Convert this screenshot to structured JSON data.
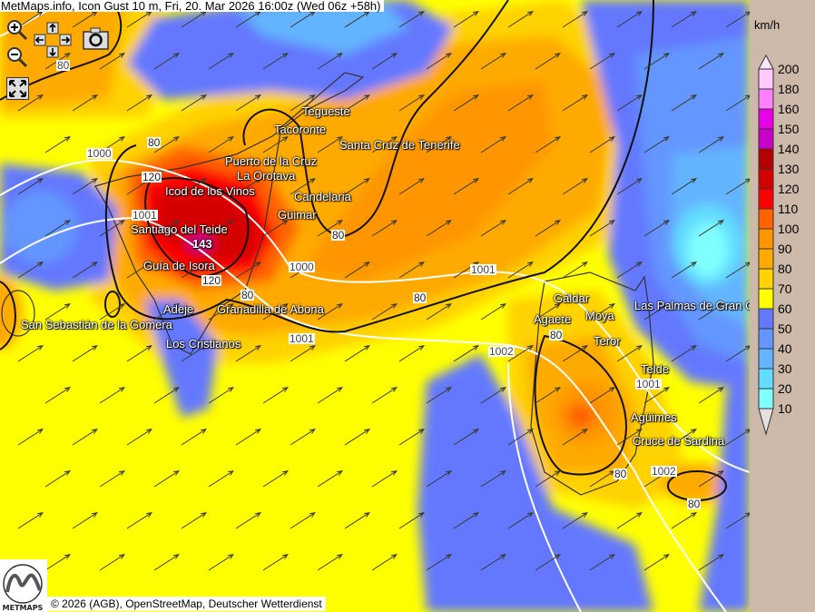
{
  "title": "MetMaps.info, Icon Gust 10 m, Fri, 20. Mar 2026 16:00z (Wed 06z +58h)",
  "controls": {
    "zoom_in": "zoom-in-icon",
    "zoom_out": "zoom-out-icon",
    "pan": "pan-arrows-icon",
    "screenshot": "camera-icon",
    "fullscreen": "fullscreen-icon"
  },
  "cities": [
    {
      "name": "Tegueste"
    },
    {
      "name": "Tacoronte"
    },
    {
      "name": "Santa Cruz de Tenerife"
    },
    {
      "name": "Puerto de la Cruz"
    },
    {
      "name": "La Orotava"
    },
    {
      "name": "Icod de los Vinos"
    },
    {
      "name": "Candelaria"
    },
    {
      "name": "Santiago del Teide"
    },
    {
      "name": "Güimar"
    },
    {
      "name": "Guía de Isora"
    },
    {
      "name": "Adeje"
    },
    {
      "name": "Granadilla de Abona"
    },
    {
      "name": "San Sebastián de la Gomera"
    },
    {
      "name": "Los Cristianos"
    },
    {
      "name": "Gáldar"
    },
    {
      "name": "Agaete"
    },
    {
      "name": "Moya"
    },
    {
      "name": "Teror"
    },
    {
      "name": "Las Palmas de Gran Canaria"
    },
    {
      "name": "Telde"
    },
    {
      "name": "Agüimes"
    },
    {
      "name": "Cruce de Sardina"
    }
  ],
  "contour_labels": [
    "80",
    "80",
    "1000",
    "120",
    "1001",
    "143",
    "120",
    "80",
    "1000",
    "80",
    "1001",
    "1001",
    "80",
    "1002",
    "80",
    "1001",
    "80",
    "1002",
    "80"
  ],
  "legend": {
    "unit": "km/h",
    "ticks": [
      "200",
      "180",
      "160",
      "150",
      "140",
      "130",
      "120",
      "110",
      "100",
      "90",
      "80",
      "70",
      "60",
      "50",
      "40",
      "30",
      "20",
      "10"
    ],
    "colors": [
      "#ffc8ff",
      "#ff80ff",
      "#e800e8",
      "#c800c8",
      "#b40000",
      "#d40000",
      "#ff0000",
      "#ff6400",
      "#ff9600",
      "#ffaa00",
      "#ffd200",
      "#ffff00",
      "#6478ff",
      "#6496ff",
      "#64b4ff",
      "#64dcff",
      "#80ffff"
    ],
    "top_color": "#ffe6ff",
    "bottom_color": "#e6e0e0"
  },
  "credit": "© 2026 (AGB), OpenStreetMap, Deutscher Wetterdienst",
  "logo_text": "METMAPS"
}
